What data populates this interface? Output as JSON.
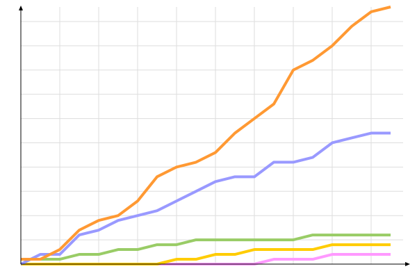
{
  "chart_data": {
    "type": "line",
    "x": [
      0,
      1,
      2,
      3,
      4,
      5,
      6,
      7,
      8,
      9,
      10,
      11,
      12,
      13,
      14,
      15,
      16,
      17,
      18,
      19
    ],
    "series": [
      {
        "color": "#ff99ff",
        "values": [
          0,
          0,
          0,
          0,
          0,
          0,
          0,
          0,
          0,
          0,
          0,
          0,
          0,
          1,
          1,
          1,
          2,
          2,
          2,
          2
        ]
      },
      {
        "color": "#ffcc00",
        "values": [
          0,
          0,
          0,
          0,
          0,
          0,
          0,
          0,
          1,
          1,
          2,
          2,
          3,
          3,
          3,
          3,
          4,
          4,
          4,
          4
        ]
      },
      {
        "color": "#99cc66",
        "values": [
          1,
          1,
          1,
          2,
          2,
          3,
          3,
          4,
          4,
          5,
          5,
          5,
          5,
          5,
          5,
          6,
          6,
          6,
          6,
          6
        ]
      },
      {
        "color": "#9999ff",
        "values": [
          0,
          2,
          2,
          6,
          7,
          9,
          10,
          11,
          13,
          15,
          17,
          18,
          18,
          21,
          21,
          22,
          25,
          26,
          27,
          27
        ]
      },
      {
        "color": "#ff9933",
        "values": [
          1,
          1,
          3,
          7,
          9,
          10,
          13,
          18,
          20,
          21,
          23,
          27,
          30,
          33,
          40,
          42,
          45,
          49,
          52,
          53
        ]
      }
    ],
    "xlim": [
      0,
      20
    ],
    "xticks": [
      2,
      4,
      6,
      8,
      10,
      12,
      14,
      16,
      18
    ],
    "ylim": [
      0,
      53
    ],
    "yticks": [
      5,
      10,
      15,
      20,
      25,
      30,
      35,
      40,
      45,
      50
    ],
    "grid": true
  }
}
